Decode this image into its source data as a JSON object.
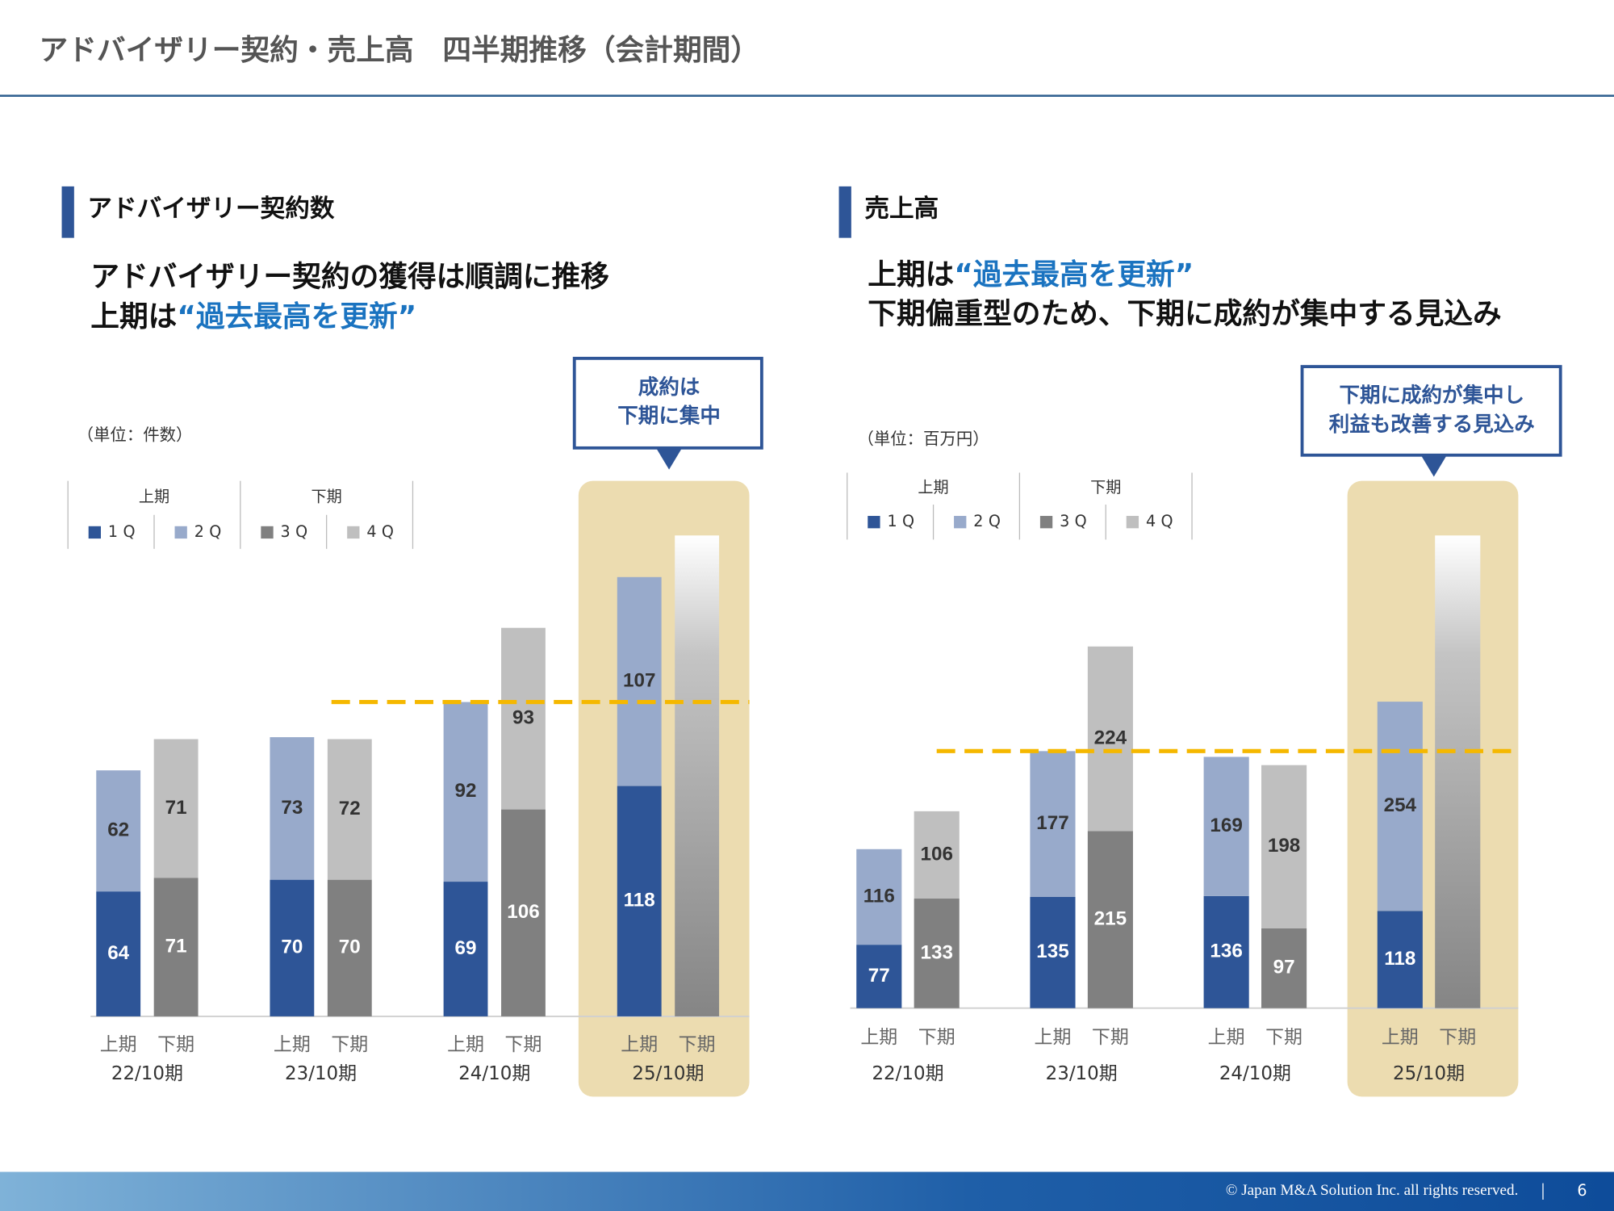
{
  "header": {
    "title": "アドバイザリー契約・売上高　四半期推移（会計期間）"
  },
  "footer": {
    "copyright": "© Japan M&A Solution Inc. all rights reserved.",
    "page": "6"
  },
  "chart_data": [
    {
      "type": "bar",
      "title": "アドバイザリー契約数",
      "headline": "アドバイザリー契約の獲得は順調に推移",
      "headline_lead": "上期は",
      "headline_emphasis": "“過去最高を更新”",
      "unit": "（単位：件数）",
      "callout": [
        "成約は",
        "下期に集中"
      ],
      "categories": [
        "22/10期",
        "23/10期",
        "24/10期",
        "25/10期"
      ],
      "sub_categories": [
        "上期",
        "下期"
      ],
      "legend_groups": [
        "上期",
        "下期"
      ],
      "series": [
        {
          "name": "1Q",
          "color": "#2e5597",
          "label_color": "#ffffff",
          "values": [
            64,
            70,
            69,
            118
          ]
        },
        {
          "name": "2Q",
          "color": "#98aacb",
          "label_color": "#333333",
          "values": [
            62,
            73,
            92,
            107
          ]
        },
        {
          "name": "3Q",
          "color": "#808080",
          "label_color": "#ffffff",
          "values": [
            71,
            70,
            106,
            null
          ]
        },
        {
          "name": "4Q",
          "color": "#bfbfbf",
          "label_color": "#333333",
          "values": [
            71,
            72,
            93,
            null
          ]
        }
      ],
      "ylim": [
        0,
        250
      ],
      "reference_line": 161
    },
    {
      "type": "bar",
      "title": "売上高",
      "headline_emphasis": "“過去最高を更新”",
      "headline_lead": "上期は",
      "headline": "下期偏重型のため、下期に成約が集中する見込み",
      "unit": "（単位：百万円）",
      "callout": [
        "下期に成約が集中し",
        "利益も改善する見込み"
      ],
      "categories": [
        "22/10期",
        "23/10期",
        "24/10期",
        "25/10期"
      ],
      "sub_categories": [
        "上期",
        "下期"
      ],
      "legend_groups": [
        "上期",
        "下期"
      ],
      "series": [
        {
          "name": "1Q",
          "color": "#2e5597",
          "label_color": "#ffffff",
          "values": [
            77,
            135,
            136,
            118
          ]
        },
        {
          "name": "2Q",
          "color": "#98aacb",
          "label_color": "#333333",
          "values": [
            116,
            177,
            169,
            254
          ]
        },
        {
          "name": "3Q",
          "color": "#808080",
          "label_color": "#ffffff",
          "values": [
            133,
            215,
            97,
            null
          ]
        },
        {
          "name": "4Q",
          "color": "#bfbfbf",
          "label_color": "#333333",
          "values": [
            106,
            224,
            198,
            null
          ]
        }
      ],
      "ylim": [
        0,
        600
      ],
      "reference_line": 312
    }
  ]
}
